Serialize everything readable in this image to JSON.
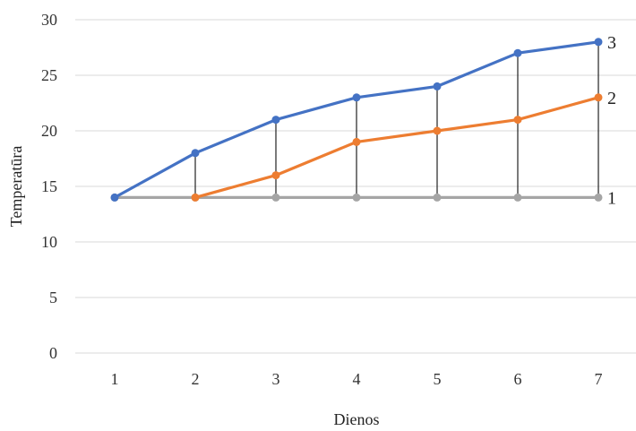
{
  "chart_data": {
    "type": "line",
    "xlabel": "Dienos",
    "ylabel": "Temperatūra",
    "x": [
      1,
      2,
      3,
      4,
      5,
      6,
      7
    ],
    "ylim": [
      0,
      30
    ],
    "yticks": [
      0,
      5,
      10,
      15,
      20,
      25,
      30
    ],
    "grid": true,
    "drop_lines": true,
    "series": [
      {
        "name": "1",
        "color": "#a5a5a5",
        "values": [
          14,
          14,
          14,
          14,
          14,
          14,
          14
        ]
      },
      {
        "name": "2",
        "color": "#ed7d31",
        "values": [
          null,
          14,
          16,
          19,
          20,
          21,
          23
        ]
      },
      {
        "name": "3",
        "color": "#4472c4",
        "values": [
          14,
          18,
          21,
          23,
          24,
          27,
          28
        ]
      }
    ]
  }
}
